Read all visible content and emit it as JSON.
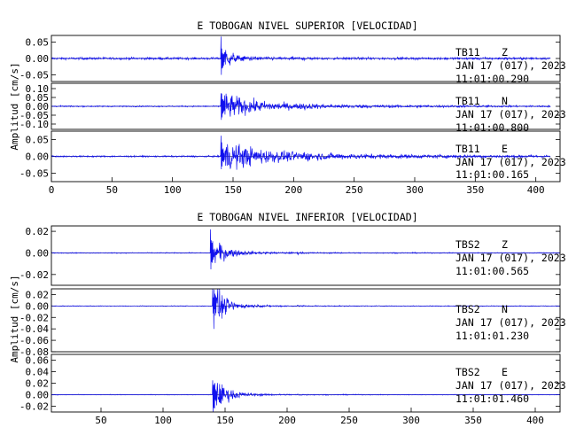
{
  "chart_data": [
    {
      "type": "line",
      "title": "E TOBOGAN NIVEL SUPERIOR [VELOCIDAD]",
      "ylabel": "Amplitud [cm/s]",
      "xlabel": "",
      "xlim": [
        0,
        420
      ],
      "xticks": [
        0,
        50,
        100,
        150,
        200,
        250,
        300,
        350,
        400
      ],
      "xtick_labels": [
        "0",
        "50",
        "100",
        "150",
        "200",
        "250",
        "300",
        "350",
        "400"
      ],
      "grid": false,
      "color": "#1010ee",
      "panels": [
        {
          "station": "TB11",
          "component": "Z",
          "date": "JAN 17 (017), 2023",
          "time": "11:01:00.290",
          "ylim": [
            -0.07,
            0.07
          ],
          "yticks": [
            0.05,
            0.0,
            -0.05
          ],
          "ytick_labels": [
            "0.05",
            "0.00",
            "-0.05"
          ],
          "x_end": 412,
          "noise": 0.006,
          "event_time": 140,
          "peak_up": 0.07,
          "peak_down": 0.06,
          "decay": 6,
          "coda": 0.012,
          "secondary": 208
        },
        {
          "station": "TB11",
          "component": "N",
          "date": "JAN 17 (017), 2023",
          "time": "11:01:00.800",
          "ylim": [
            -0.13,
            0.13
          ],
          "yticks": [
            0.1,
            0.05,
            0.0,
            -0.05,
            -0.1
          ],
          "ytick_labels": [
            "0.10",
            "0.05",
            "0.00",
            "-0.05",
            "-0.10"
          ],
          "x_end": 412,
          "noise": 0.006,
          "event_time": 140,
          "peak_up": 0.125,
          "peak_down": 0.12,
          "decay": 22,
          "coda": 0.03,
          "secondary": 208
        },
        {
          "station": "TB11",
          "component": "E",
          "date": "JAN 17 (017), 2023",
          "time": "11:01:00.165",
          "ylim": [
            -0.075,
            0.075
          ],
          "yticks": [
            0.05,
            0.0,
            -0.05
          ],
          "ytick_labels": [
            "0.05",
            "0.00",
            "-0.05"
          ],
          "x_end": 412,
          "noise": 0.004,
          "event_time": 140,
          "peak_up": 0.07,
          "peak_down": 0.06,
          "decay": 28,
          "coda": 0.02,
          "secondary": 208
        }
      ]
    },
    {
      "type": "line",
      "title": "E TOBOGAN NIVEL INFERIOR [VELOCIDAD]",
      "ylabel": "Amplitud [cm/s]",
      "xlabel": "",
      "xlim": [
        10,
        420
      ],
      "xticks": [
        50,
        100,
        150,
        200,
        250,
        300,
        350,
        400
      ],
      "xtick_labels": [
        "50",
        "100",
        "150",
        "200",
        "250",
        "300",
        "350",
        "400"
      ],
      "grid": false,
      "color": "#1010ee",
      "panels": [
        {
          "station": "TBS2",
          "component": "Z",
          "date": "JAN 17 (017), 2023",
          "time": "11:01:00.565",
          "ylim": [
            -0.03,
            0.025
          ],
          "yticks": [
            0.02,
            0.0,
            -0.02
          ],
          "ytick_labels": [
            "0.02",
            "0.00",
            "-0.02"
          ],
          "x_end": 420,
          "noise": 0.0007,
          "event_time": 138,
          "peak_up": 0.022,
          "peak_down": 0.03,
          "decay": 10,
          "coda": 0.002,
          "secondary": 208
        },
        {
          "station": "TBS2",
          "component": "N",
          "date": "JAN 17 (017), 2023",
          "time": "11:01:01.230",
          "ylim": [
            -0.08,
            0.03
          ],
          "yticks": [
            0.02,
            0.0,
            -0.02,
            -0.04,
            -0.06,
            -0.08
          ],
          "ytick_labels": [
            "0.02",
            "0.00",
            "-0.02",
            "-0.04",
            "-0.06",
            "-0.08"
          ],
          "x_end": 420,
          "noise": 0.001,
          "event_time": 140,
          "peak_up": 0.022,
          "peak_down": 0.075,
          "decay": 9,
          "coda": 0.003,
          "secondary": 208
        },
        {
          "station": "TBS2",
          "component": "E",
          "date": "JAN 17 (017), 2023",
          "time": "11:01:01.460",
          "ylim": [
            -0.03,
            0.07
          ],
          "yticks": [
            0.06,
            0.04,
            0.02,
            0.0,
            -0.02
          ],
          "ytick_labels": [
            "0.06",
            "0.04",
            "0.02",
            "0.00",
            "-0.02"
          ],
          "x_end": 420,
          "noise": 0.001,
          "event_time": 140,
          "peak_up": 0.06,
          "peak_down": 0.03,
          "decay": 10,
          "coda": 0.003,
          "secondary": 208
        }
      ]
    }
  ]
}
